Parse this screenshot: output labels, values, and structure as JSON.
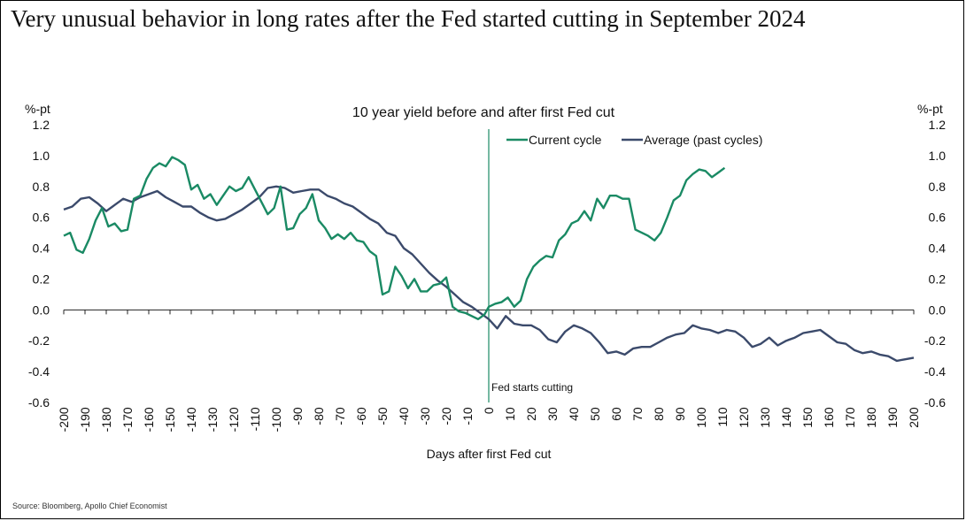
{
  "headline": "Very unusual behavior in long rates after the Fed started cutting in September 2024",
  "source": "Source: Bloomberg, Apollo Chief Economist",
  "chart_data": {
    "type": "line",
    "title": "10 year yield before and after first Fed cut",
    "xlabel": "Days after first Fed cut",
    "ylabel_left": "%-pt",
    "ylabel_right": "%-pt",
    "xlim": [
      -200,
      200
    ],
    "ylim": [
      -0.6,
      1.2
    ],
    "yticks": [
      -0.6,
      -0.4,
      -0.2,
      0.0,
      0.2,
      0.4,
      0.6,
      0.8,
      1.0,
      1.2
    ],
    "ytick_labels": [
      "-0.6",
      "-0.4",
      "-0.2",
      "0.0",
      "0.2",
      "0.4",
      "0.6",
      "0.8",
      "1.0",
      "1.2"
    ],
    "xticks": [
      -200,
      -190,
      -180,
      -170,
      -160,
      -150,
      -140,
      -130,
      -120,
      -110,
      -100,
      -90,
      -80,
      -70,
      -60,
      -50,
      -40,
      -30,
      -20,
      -10,
      0,
      10,
      20,
      30,
      40,
      50,
      60,
      70,
      80,
      90,
      100,
      110,
      120,
      130,
      140,
      150,
      160,
      170,
      180,
      190,
      200
    ],
    "annotation": "Fed starts cutting",
    "legend_position": "top-center",
    "series": [
      {
        "name": "Current cycle",
        "color": "#1a8a64",
        "x": [
          -200,
          -197,
          -194,
          -191,
          -188,
          -185,
          -182,
          -179,
          -176,
          -173,
          -170,
          -167,
          -164,
          -161,
          -158,
          -155,
          -152,
          -149,
          -146,
          -143,
          -140,
          -137,
          -134,
          -131,
          -128,
          -125,
          -122,
          -119,
          -116,
          -113,
          -110,
          -107,
          -104,
          -101,
          -98,
          -95,
          -92,
          -89,
          -86,
          -83,
          -80,
          -77,
          -74,
          -71,
          -68,
          -65,
          -62,
          -59,
          -56,
          -53,
          -50,
          -47,
          -44,
          -41,
          -38,
          -35,
          -32,
          -29,
          -26,
          -23,
          -20,
          -17,
          -14,
          -11,
          -8,
          -5,
          -2,
          0,
          3,
          6,
          9,
          12,
          15,
          18,
          21,
          24,
          27,
          30,
          33,
          36,
          39,
          42,
          45,
          48,
          51,
          54,
          57,
          60,
          63,
          66,
          69,
          72,
          75,
          78,
          81,
          84,
          87,
          90,
          93,
          96,
          99,
          102,
          105,
          108,
          111
        ],
        "y": [
          0.48,
          0.5,
          0.39,
          0.37,
          0.46,
          0.58,
          0.66,
          0.54,
          0.56,
          0.51,
          0.52,
          0.72,
          0.74,
          0.85,
          0.92,
          0.95,
          0.93,
          0.99,
          0.97,
          0.94,
          0.78,
          0.81,
          0.72,
          0.75,
          0.68,
          0.74,
          0.8,
          0.77,
          0.79,
          0.86,
          0.78,
          0.7,
          0.62,
          0.66,
          0.8,
          0.52,
          0.53,
          0.62,
          0.66,
          0.75,
          0.58,
          0.53,
          0.46,
          0.49,
          0.46,
          0.5,
          0.45,
          0.44,
          0.38,
          0.35,
          0.1,
          0.12,
          0.28,
          0.22,
          0.14,
          0.2,
          0.12,
          0.12,
          0.16,
          0.17,
          0.21,
          0.02,
          -0.01,
          -0.02,
          -0.04,
          -0.06,
          -0.03,
          0.02,
          0.04,
          0.05,
          0.08,
          0.02,
          0.06,
          0.2,
          0.28,
          0.32,
          0.35,
          0.34,
          0.45,
          0.49,
          0.56,
          0.58,
          0.64,
          0.58,
          0.72,
          0.66,
          0.74,
          0.74,
          0.72,
          0.72,
          0.52,
          0.5,
          0.48,
          0.45,
          0.5,
          0.6,
          0.71,
          0.74,
          0.84,
          0.88,
          0.91,
          0.9,
          0.86,
          0.89,
          0.92
        ]
      },
      {
        "name": "Average (past cycles)",
        "color": "#3b4a6b",
        "x": [
          -200,
          -196,
          -192,
          -188,
          -184,
          -180,
          -176,
          -172,
          -168,
          -164,
          -160,
          -156,
          -152,
          -148,
          -144,
          -140,
          -136,
          -132,
          -128,
          -124,
          -120,
          -116,
          -112,
          -108,
          -104,
          -100,
          -96,
          -92,
          -88,
          -84,
          -80,
          -76,
          -72,
          -68,
          -64,
          -60,
          -56,
          -52,
          -48,
          -44,
          -40,
          -36,
          -32,
          -28,
          -24,
          -20,
          -16,
          -12,
          -8,
          -4,
          0,
          4,
          8,
          12,
          16,
          20,
          24,
          28,
          32,
          36,
          40,
          44,
          48,
          52,
          56,
          60,
          64,
          68,
          72,
          76,
          80,
          84,
          88,
          92,
          96,
          100,
          104,
          108,
          112,
          116,
          120,
          124,
          128,
          132,
          136,
          140,
          144,
          148,
          152,
          156,
          160,
          164,
          168,
          172,
          176,
          180,
          184,
          188,
          192,
          196,
          200
        ],
        "y": [
          0.65,
          0.67,
          0.72,
          0.73,
          0.69,
          0.64,
          0.68,
          0.72,
          0.7,
          0.73,
          0.75,
          0.77,
          0.73,
          0.7,
          0.67,
          0.67,
          0.63,
          0.6,
          0.58,
          0.59,
          0.62,
          0.65,
          0.69,
          0.73,
          0.79,
          0.8,
          0.79,
          0.76,
          0.77,
          0.78,
          0.78,
          0.74,
          0.72,
          0.69,
          0.67,
          0.63,
          0.59,
          0.56,
          0.5,
          0.48,
          0.4,
          0.36,
          0.3,
          0.24,
          0.19,
          0.15,
          0.1,
          0.05,
          0.02,
          -0.02,
          -0.06,
          -0.12,
          -0.04,
          -0.09,
          -0.1,
          -0.1,
          -0.13,
          -0.19,
          -0.21,
          -0.14,
          -0.1,
          -0.12,
          -0.15,
          -0.21,
          -0.28,
          -0.27,
          -0.29,
          -0.25,
          -0.24,
          -0.24,
          -0.21,
          -0.18,
          -0.16,
          -0.15,
          -0.1,
          -0.12,
          -0.13,
          -0.15,
          -0.13,
          -0.14,
          -0.18,
          -0.24,
          -0.22,
          -0.18,
          -0.23,
          -0.2,
          -0.18,
          -0.15,
          -0.14,
          -0.13,
          -0.17,
          -0.21,
          -0.22,
          -0.26,
          -0.28,
          -0.27,
          -0.29,
          -0.3,
          -0.33,
          -0.32,
          -0.31
        ]
      }
    ]
  }
}
